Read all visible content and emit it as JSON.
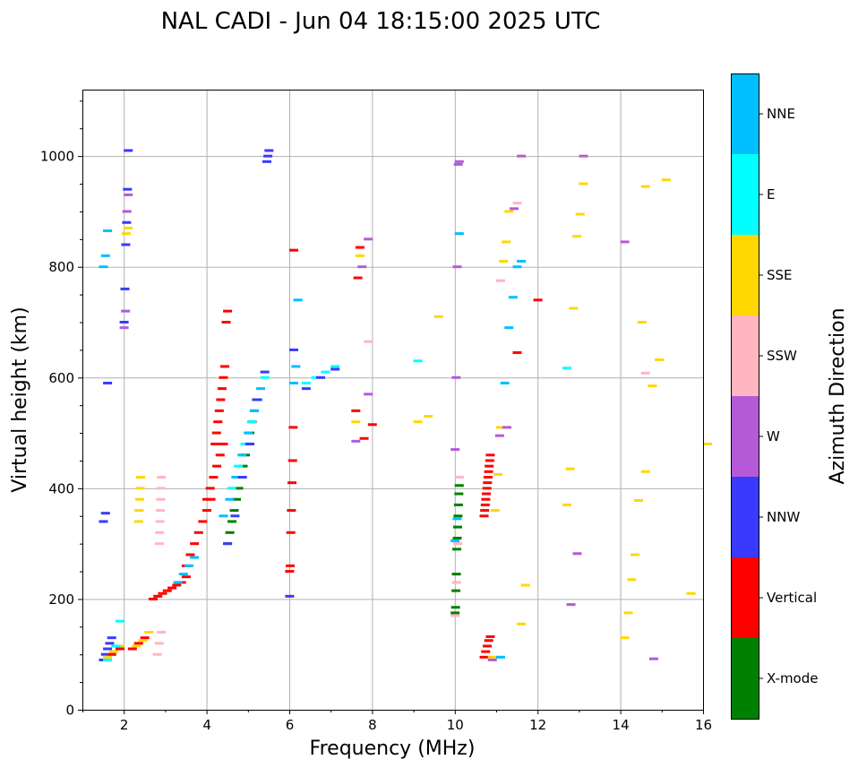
{
  "chart_data": {
    "type": "scatter",
    "title": "NAL CADI - Jun 04 18:15:00 2025 UTC",
    "xlabel": "Frequency (MHz)",
    "ylabel": "Virtual height (km)",
    "xlim": [
      1,
      16
    ],
    "ylim": [
      0,
      1120
    ],
    "x_ticks": [
      2,
      4,
      6,
      8,
      10,
      12,
      14,
      16
    ],
    "y_ticks": [
      0,
      200,
      400,
      600,
      800,
      1000
    ],
    "grid": true,
    "colorbar": {
      "title": "Azimuth Direction",
      "categories": [
        {
          "label": "X-mode",
          "color": "#008000"
        },
        {
          "label": "Vertical",
          "color": "#ff0000"
        },
        {
          "label": "NNW",
          "color": "#3a3aff"
        },
        {
          "label": "W",
          "color": "#b45ad8"
        },
        {
          "label": "SSW",
          "color": "#ffb6c1"
        },
        {
          "label": "SSE",
          "color": "#ffd700"
        },
        {
          "label": "E",
          "color": "#00ffff"
        },
        {
          "label": "NNE",
          "color": "#00bfff"
        }
      ]
    },
    "traces": [
      {
        "category": "Vertical",
        "freq_range": [
          2.6,
          3.4
        ],
        "heights": [
          200,
          205,
          210,
          215,
          220,
          225,
          230,
          240
        ]
      },
      {
        "category": "Vertical",
        "freq_range": [
          3.4,
          4.0
        ],
        "heights": [
          260,
          280,
          300,
          320,
          340,
          360,
          380
        ]
      },
      {
        "category": "Vertical",
        "freq_range": [
          3.9,
          4.3
        ],
        "heights": [
          380,
          400,
          420,
          440,
          460,
          480
        ]
      },
      {
        "category": "Vertical",
        "freq_range": [
          4.1,
          4.4
        ],
        "heights": [
          480,
          500,
          520,
          540,
          560,
          580,
          600,
          620,
          700,
          720
        ]
      },
      {
        "category": "X-mode",
        "freq_range": [
          4.4,
          5.1
        ],
        "heights": [
          300,
          320,
          340,
          360,
          380,
          400,
          420,
          440,
          460,
          480,
          500,
          520,
          540,
          560
        ]
      },
      {
        "category": "NNE",
        "freq_range": [
          3.2,
          3.6
        ],
        "heights": [
          230,
          245,
          260,
          275
        ]
      },
      {
        "category": "NNE",
        "freq_range": [
          4.3,
          5.2
        ],
        "heights": [
          350,
          380,
          420,
          460,
          500,
          540,
          580
        ]
      },
      {
        "category": "E",
        "freq_range": [
          4.5,
          5.3
        ],
        "heights": [
          400,
          440,
          480,
          520,
          560,
          600
        ]
      },
      {
        "category": "NNW",
        "freq_range": [
          4.4,
          5.3
        ],
        "heights": [
          300,
          350,
          420,
          480,
          560,
          610
        ]
      },
      {
        "category": "SSW",
        "freq_range": [
          2.75,
          2.8
        ],
        "heights": [
          300,
          320,
          340,
          360,
          380,
          400,
          420
        ]
      },
      {
        "category": "SSE",
        "freq_range": [
          2.25,
          2.3
        ],
        "heights": [
          340,
          360,
          380,
          400,
          420
        ]
      },
      {
        "category": "NNW",
        "freq_range": [
          1.4,
          1.6
        ],
        "heights": [
          90,
          100,
          110,
          120,
          130
        ]
      },
      {
        "category": "SSE",
        "freq_range": [
          1.5,
          1.8
        ],
        "heights": [
          95,
          105,
          115
        ]
      },
      {
        "category": "E",
        "freq_range": [
          1.5,
          1.8
        ],
        "heights": [
          90,
          100,
          115,
          160
        ]
      },
      {
        "category": "Vertical",
        "freq_range": [
          1.6,
          1.8
        ],
        "heights": [
          100,
          110
        ]
      },
      {
        "category": "Vertical",
        "freq_range": [
          2.1,
          2.4
        ],
        "heights": [
          110,
          120,
          130
        ]
      },
      {
        "category": "SSE",
        "freq_range": [
          2.2,
          2.5
        ],
        "heights": [
          115,
          125,
          140
        ]
      },
      {
        "category": "SSW",
        "freq_range": [
          2.7,
          2.8
        ],
        "heights": [
          100,
          120,
          140
        ]
      },
      {
        "category": "NNW",
        "freq_range": [
          1.4,
          1.5
        ],
        "heights": [
          340,
          355,
          590
        ]
      },
      {
        "category": "NNE",
        "freq_range": [
          1.4,
          1.5
        ],
        "heights": [
          800,
          820,
          865
        ]
      },
      {
        "category": "NNW",
        "freq_range": [
          1.9,
          2.0
        ],
        "heights": [
          700,
          760,
          840,
          880,
          940,
          1010
        ]
      },
      {
        "category": "W",
        "freq_range": [
          1.9,
          2.0
        ],
        "heights": [
          690,
          720,
          900,
          930
        ]
      },
      {
        "category": "SSE",
        "freq_range": [
          1.95,
          2.0
        ],
        "heights": [
          860,
          870
        ]
      },
      {
        "category": "NNW",
        "freq_range": [
          5.35,
          5.4
        ],
        "heights": [
          990,
          1000,
          1010
        ]
      },
      {
        "category": "NNE",
        "freq_range": [
          6.0,
          6.1
        ],
        "heights": [
          590,
          620,
          740
        ]
      },
      {
        "category": "E",
        "freq_range": [
          6.3,
          7.0
        ],
        "heights": [
          590,
          600,
          610,
          620
        ]
      },
      {
        "category": "NNW",
        "freq_range": [
          6.3,
          7.0
        ],
        "heights": [
          580,
          600,
          615
        ]
      },
      {
        "category": "Vertical",
        "freq_range": [
          5.9,
          6.0
        ],
        "heights": [
          250,
          260,
          320,
          360,
          410,
          450,
          510,
          830
        ]
      },
      {
        "category": "NNW",
        "freq_range": [
          5.9,
          6.0
        ],
        "heights": [
          205,
          650
        ]
      },
      {
        "category": "Vertical",
        "freq_range": [
          7.5,
          7.6
        ],
        "heights": [
          540,
          780,
          835
        ]
      },
      {
        "category": "SSE",
        "freq_range": [
          7.5,
          7.6
        ],
        "heights": [
          520,
          820
        ]
      },
      {
        "category": "W",
        "freq_range": [
          7.5,
          7.8
        ],
        "heights": [
          485,
          800,
          850
        ]
      },
      {
        "category": "Vertical",
        "freq_range": [
          7.7,
          7.9
        ],
        "heights": [
          490,
          515
        ]
      },
      {
        "category": "W",
        "freq_range": [
          7.8,
          7.9
        ],
        "heights": [
          570
        ]
      },
      {
        "category": "SSW",
        "freq_range": [
          7.8,
          7.9
        ],
        "heights": [
          665
        ]
      },
      {
        "category": "SSE",
        "freq_range": [
          9.0,
          9.5
        ],
        "heights": [
          520,
          530,
          710
        ]
      },
      {
        "category": "E",
        "freq_range": [
          9.0,
          9.2
        ],
        "heights": [
          630
        ]
      },
      {
        "category": "X-mode",
        "freq_range": [
          9.9,
          10.0
        ],
        "heights": [
          175,
          185,
          215,
          245,
          290,
          310,
          330,
          350,
          370,
          390,
          405
        ]
      },
      {
        "category": "SSW",
        "freq_range": [
          9.9,
          10.0
        ],
        "heights": [
          170,
          230,
          300,
          420
        ]
      },
      {
        "category": "NNE",
        "freq_range": [
          9.9,
          10.0
        ],
        "heights": [
          305,
          345,
          860
        ]
      },
      {
        "category": "W",
        "freq_range": [
          9.9,
          10.0
        ],
        "heights": [
          470,
          600,
          800,
          985,
          990
        ]
      },
      {
        "category": "Vertical",
        "freq_range": [
          10.6,
          10.75
        ],
        "heights": [
          350,
          360,
          370,
          380,
          390,
          400,
          410,
          420,
          430,
          440,
          450,
          460
        ]
      },
      {
        "category": "Vertical",
        "freq_range": [
          10.6,
          10.75
        ],
        "heights": [
          95,
          105,
          115,
          125,
          132
        ]
      },
      {
        "category": "SSE",
        "freq_range": [
          10.8,
          11.2
        ],
        "heights": [
          95,
          360,
          425,
          510,
          810,
          845,
          900
        ]
      },
      {
        "category": "W",
        "freq_range": [
          10.8,
          11.5
        ],
        "heights": [
          90,
          495,
          510,
          905,
          1000
        ]
      },
      {
        "category": "NNE",
        "freq_range": [
          11.0,
          11.5
        ],
        "heights": [
          95,
          590,
          690,
          745,
          800,
          810
        ]
      },
      {
        "category": "Vertical",
        "freq_range": [
          11.4,
          11.9
        ],
        "heights": [
          645,
          740
        ]
      },
      {
        "category": "SSW",
        "freq_range": [
          11.0,
          11.4
        ],
        "heights": [
          775,
          915
        ]
      },
      {
        "category": "SSE",
        "freq_range": [
          11.5,
          11.6
        ],
        "heights": [
          155,
          225
        ]
      },
      {
        "category": "SSE",
        "freq_range": [
          12.6,
          13.0
        ],
        "heights": [
          370,
          435,
          725,
          855,
          895,
          950
        ]
      },
      {
        "category": "E",
        "freq_range": [
          12.6,
          12.8
        ],
        "heights": [
          617
        ]
      },
      {
        "category": "W",
        "freq_range": [
          12.7,
          13.0
        ],
        "heights": [
          190,
          282,
          1000
        ]
      },
      {
        "category": "SSE",
        "freq_range": [
          14.0,
          14.5
        ],
        "heights": [
          130,
          175,
          235,
          280,
          378,
          700,
          945
        ]
      },
      {
        "category": "W",
        "freq_range": [
          14.0,
          14.2
        ],
        "heights": [
          845
        ]
      },
      {
        "category": "SSE",
        "freq_range": [
          14.5,
          15.0
        ],
        "heights": [
          430,
          585,
          632,
          957
        ]
      },
      {
        "category": "SSW",
        "freq_range": [
          14.5,
          14.8
        ],
        "heights": [
          608
        ]
      },
      {
        "category": "W",
        "freq_range": [
          14.7,
          15.1
        ],
        "heights": [
          92
        ]
      },
      {
        "category": "SSE",
        "freq_range": [
          15.6,
          16.0
        ],
        "heights": [
          210,
          480
        ]
      }
    ]
  }
}
